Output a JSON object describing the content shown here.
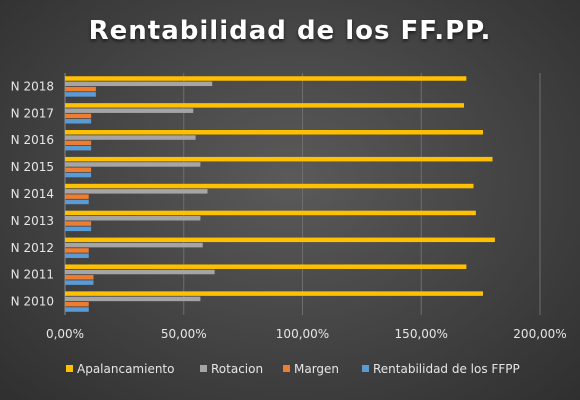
{
  "chart_data": {
    "type": "bar",
    "orientation": "horizontal",
    "title": "Rentabilidad de los FF.PP.",
    "categories": [
      "N 2010",
      "N 2011",
      "N 2012",
      "N 2013",
      "N 2014",
      "N 2015",
      "N 2016",
      "N 2017",
      "N 2018"
    ],
    "series": [
      {
        "name": "Apalancamiento",
        "color": "#FFC000",
        "values": [
          176,
          169,
          181,
          173,
          172,
          180,
          176,
          168,
          169
        ]
      },
      {
        "name": "Rotacion",
        "color": "#A5A5A5",
        "values": [
          57,
          63,
          58,
          57,
          60,
          57,
          55,
          54,
          62
        ]
      },
      {
        "name": "Margen",
        "color": "#ED7D31",
        "values": [
          10,
          12,
          10,
          11,
          10,
          11,
          11,
          11,
          13
        ]
      },
      {
        "name": "Rentabilidad de los FFPP",
        "color": "#5B9BD5",
        "values": [
          10,
          12,
          10,
          11,
          10,
          11,
          11,
          11,
          13
        ]
      }
    ],
    "x_ticks": [
      "0,00%",
      "50,00%",
      "100,00%",
      "150,00%",
      "200,00%"
    ],
    "xlim": [
      0,
      200
    ],
    "grid": true,
    "legend_position": "bottom"
  }
}
